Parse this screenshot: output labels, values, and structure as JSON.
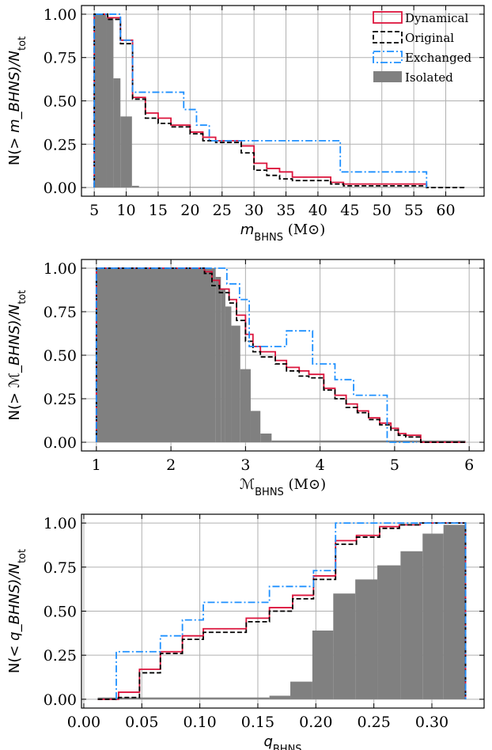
{
  "chart_data": [
    {
      "type": "line",
      "xlim": [
        3,
        66
      ],
      "ylim": [
        -0.05,
        1.05
      ],
      "xticks": [
        5,
        10,
        15,
        20,
        25,
        30,
        35,
        40,
        45,
        50,
        55,
        60
      ],
      "xtick_labels": [
        "5",
        "10",
        "15",
        "20",
        "25",
        "30",
        "35",
        "40",
        "45",
        "50",
        "55",
        "60"
      ],
      "yticks": [
        0,
        0.25,
        0.5,
        0.75,
        1.0
      ],
      "ytick_labels": [
        "0.00",
        "0.25",
        "0.50",
        "0.75",
        "1.00"
      ],
      "xlabel": "m_BHNS (M⊙)",
      "ylabel": "N(> m_BHNS)/N_tot",
      "grid": true,
      "legend": "top-right",
      "series": [
        {
          "name": "Dynamical",
          "kind": "step",
          "color": "#dc143c",
          "dash": "solid",
          "x": [
            5.0,
            5.0,
            7.1,
            7.1,
            9.1,
            9.1,
            11.0,
            11.0,
            13.0,
            13.0,
            15.0,
            15.0,
            17.0,
            17.0,
            20.0,
            20.0,
            22.0,
            22.0,
            24.0,
            24.0,
            28.0,
            28.0,
            30.0,
            30.0,
            32.0,
            32.0,
            34.0,
            34.0,
            36.0,
            36.0,
            42.0,
            42.0,
            44.0,
            44.0,
            57.0,
            57.0
          ],
          "y": [
            0.0,
            1.0,
            1.0,
            0.98,
            0.98,
            0.85,
            0.85,
            0.52,
            0.52,
            0.43,
            0.43,
            0.4,
            0.4,
            0.36,
            0.36,
            0.32,
            0.32,
            0.29,
            0.29,
            0.27,
            0.27,
            0.24,
            0.24,
            0.14,
            0.14,
            0.11,
            0.11,
            0.09,
            0.09,
            0.06,
            0.06,
            0.03,
            0.03,
            0.02,
            0.02,
            0.0
          ]
        },
        {
          "name": "Original",
          "kind": "step",
          "color": "#000000",
          "dash": "dashed",
          "x": [
            5.0,
            5.0,
            7.1,
            7.1,
            9.1,
            9.1,
            11.0,
            11.0,
            13.0,
            13.0,
            15.0,
            15.0,
            17.0,
            17.0,
            20.0,
            20.0,
            22.0,
            22.0,
            24.0,
            24.0,
            28.0,
            28.0,
            30.0,
            30.0,
            32.0,
            32.0,
            34.0,
            34.0,
            36.0,
            36.0,
            42.0,
            42.0,
            44.0,
            44.0,
            57.0,
            57.0,
            63.0
          ],
          "y": [
            0.0,
            1.0,
            1.0,
            0.97,
            0.97,
            0.83,
            0.83,
            0.51,
            0.51,
            0.4,
            0.4,
            0.37,
            0.37,
            0.35,
            0.35,
            0.31,
            0.31,
            0.27,
            0.27,
            0.26,
            0.26,
            0.2,
            0.2,
            0.1,
            0.1,
            0.07,
            0.07,
            0.05,
            0.05,
            0.04,
            0.04,
            0.02,
            0.02,
            0.01,
            0.01,
            0.0,
            0.0
          ]
        },
        {
          "name": "Exchanged",
          "kind": "step",
          "color": "#1e90ff",
          "dash": "dashdot",
          "x": [
            5.0,
            5.0,
            9.1,
            9.1,
            11.0,
            11.0,
            19.0,
            19.0,
            21.0,
            21.0,
            23.0,
            23.0,
            43.5,
            43.5,
            57.0,
            57.0
          ],
          "y": [
            0.0,
            1.0,
            1.0,
            0.85,
            0.85,
            0.55,
            0.55,
            0.45,
            0.45,
            0.36,
            0.36,
            0.27,
            0.27,
            0.09,
            0.09,
            0.0
          ]
        },
        {
          "name": "Isolated",
          "kind": "bars",
          "color": "#808080",
          "edges": [
            5.0,
            6.9,
            8.0,
            9.1,
            10.9,
            12.0,
            63.0
          ],
          "values": [
            1.0,
            0.98,
            0.63,
            0.41,
            0.01,
            0.003
          ]
        }
      ]
    },
    {
      "type": "line",
      "xlim": [
        0.8,
        6.2
      ],
      "ylim": [
        -0.05,
        1.05
      ],
      "xticks": [
        1,
        2,
        3,
        4,
        5,
        6
      ],
      "xtick_labels": [
        "1",
        "2",
        "3",
        "4",
        "5",
        "6"
      ],
      "yticks": [
        0,
        0.25,
        0.5,
        0.75,
        1.0
      ],
      "ytick_labels": [
        "0.00",
        "0.25",
        "0.50",
        "0.75",
        "1.00"
      ],
      "xlabel": "ℳ_BHNS (M⊙)",
      "ylabel": "N(> ℳ_BHNS)/N_tot",
      "grid": true,
      "series": [
        {
          "name": "Dynamical",
          "kind": "step",
          "color": "#dc143c",
          "dash": "solid",
          "x": [
            1.0,
            1.0,
            2.45,
            2.45,
            2.55,
            2.55,
            2.65,
            2.65,
            2.78,
            2.78,
            2.88,
            2.88,
            3.0,
            3.0,
            3.1,
            3.1,
            3.2,
            3.2,
            3.4,
            3.4,
            3.55,
            3.55,
            3.72,
            3.72,
            3.85,
            3.85,
            4.05,
            4.05,
            4.2,
            4.2,
            4.35,
            4.35,
            4.5,
            4.5,
            4.65,
            4.65,
            4.8,
            4.8,
            4.95,
            4.95,
            5.05,
            5.05,
            5.15,
            5.15,
            5.35,
            5.35,
            5.95
          ],
          "y": [
            0.0,
            1.0,
            1.0,
            0.98,
            0.98,
            0.93,
            0.93,
            0.88,
            0.88,
            0.82,
            0.82,
            0.73,
            0.73,
            0.62,
            0.62,
            0.55,
            0.55,
            0.52,
            0.52,
            0.47,
            0.47,
            0.43,
            0.43,
            0.41,
            0.41,
            0.39,
            0.39,
            0.31,
            0.31,
            0.27,
            0.27,
            0.22,
            0.22,
            0.18,
            0.18,
            0.14,
            0.14,
            0.11,
            0.11,
            0.08,
            0.08,
            0.05,
            0.05,
            0.04,
            0.04,
            0.0,
            0.0
          ]
        },
        {
          "name": "Original",
          "kind": "step",
          "color": "#000000",
          "dash": "dashed",
          "x": [
            1.0,
            1.0,
            2.45,
            2.45,
            2.55,
            2.55,
            2.65,
            2.65,
            2.78,
            2.78,
            2.88,
            2.88,
            3.0,
            3.0,
            3.1,
            3.1,
            3.2,
            3.2,
            3.4,
            3.4,
            3.55,
            3.55,
            3.72,
            3.72,
            3.85,
            3.85,
            4.05,
            4.05,
            4.2,
            4.2,
            4.35,
            4.35,
            4.5,
            4.5,
            4.65,
            4.65,
            4.8,
            4.8,
            4.95,
            4.95,
            5.05,
            5.05,
            5.15,
            5.15,
            5.35,
            5.35,
            5.95
          ],
          "y": [
            0.0,
            1.0,
            1.0,
            0.97,
            0.97,
            0.9,
            0.9,
            0.86,
            0.86,
            0.8,
            0.8,
            0.7,
            0.7,
            0.58,
            0.58,
            0.52,
            0.52,
            0.49,
            0.49,
            0.45,
            0.45,
            0.41,
            0.41,
            0.38,
            0.38,
            0.37,
            0.37,
            0.3,
            0.3,
            0.25,
            0.25,
            0.2,
            0.2,
            0.17,
            0.17,
            0.13,
            0.13,
            0.1,
            0.1,
            0.07,
            0.07,
            0.04,
            0.04,
            0.03,
            0.03,
            0.0,
            0.0
          ]
        },
        {
          "name": "Exchanged",
          "kind": "step",
          "color": "#1e90ff",
          "dash": "dashdot",
          "x": [
            1.0,
            1.0,
            2.75,
            2.75,
            2.92,
            2.92,
            3.05,
            3.05,
            3.55,
            3.55,
            3.9,
            3.9,
            4.2,
            4.2,
            4.45,
            4.45,
            4.9,
            4.9,
            5.3,
            5.3
          ],
          "y": [
            0.0,
            1.0,
            1.0,
            0.91,
            0.91,
            0.82,
            0.82,
            0.55,
            0.55,
            0.64,
            0.64,
            0.45,
            0.45,
            0.36,
            0.36,
            0.27,
            0.27,
            0.0,
            0.0,
            0.0
          ]
        },
        {
          "name": "Isolated",
          "kind": "bars",
          "color": "#808080",
          "edges": [
            1.0,
            2.6,
            2.67,
            2.73,
            2.81,
            2.93,
            3.07,
            3.2,
            3.35,
            5.95
          ],
          "values": [
            1.0,
            0.95,
            0.88,
            0.78,
            0.67,
            0.42,
            0.18,
            0.05,
            0.01
          ]
        }
      ]
    },
    {
      "type": "line",
      "xlim": [
        -0.002,
        0.345
      ],
      "ylim": [
        -0.05,
        1.05
      ],
      "xticks": [
        0.0,
        0.05,
        0.1,
        0.15,
        0.2,
        0.25,
        0.3
      ],
      "xtick_labels": [
        "0.00",
        "0.05",
        "0.10",
        "0.15",
        "0.20",
        "0.25",
        "0.30"
      ],
      "yticks": [
        0,
        0.25,
        0.5,
        0.75,
        1.0
      ],
      "ytick_labels": [
        "0.00",
        "0.25",
        "0.50",
        "0.75",
        "1.00"
      ],
      "xlabel": "q_BHNS",
      "ylabel": "N(< q_BHNS)/N_tot",
      "grid": true,
      "series": [
        {
          "name": "Dynamical",
          "kind": "step",
          "color": "#dc143c",
          "dash": "solid",
          "x": [
            0.012,
            0.03,
            0.03,
            0.048,
            0.048,
            0.066,
            0.066,
            0.085,
            0.085,
            0.103,
            0.103,
            0.14,
            0.14,
            0.16,
            0.16,
            0.18,
            0.18,
            0.198,
            0.198,
            0.217,
            0.217,
            0.235,
            0.235,
            0.255,
            0.255,
            0.272,
            0.272,
            0.29,
            0.29,
            0.329,
            0.329
          ],
          "y": [
            0.0,
            0.0,
            0.04,
            0.04,
            0.17,
            0.17,
            0.27,
            0.27,
            0.36,
            0.36,
            0.4,
            0.4,
            0.46,
            0.46,
            0.52,
            0.52,
            0.59,
            0.59,
            0.7,
            0.7,
            0.9,
            0.9,
            0.93,
            0.93,
            0.98,
            0.98,
            0.99,
            0.99,
            1.0,
            1.0,
            0.0
          ]
        },
        {
          "name": "Original",
          "kind": "step",
          "color": "#000000",
          "dash": "dashed",
          "x": [
            0.012,
            0.03,
            0.03,
            0.048,
            0.048,
            0.066,
            0.066,
            0.085,
            0.085,
            0.103,
            0.103,
            0.14,
            0.14,
            0.16,
            0.16,
            0.18,
            0.18,
            0.198,
            0.198,
            0.217,
            0.217,
            0.235,
            0.235,
            0.255,
            0.255,
            0.272,
            0.272,
            0.29,
            0.29,
            0.329,
            0.329
          ],
          "y": [
            0.0,
            0.0,
            0.01,
            0.01,
            0.15,
            0.15,
            0.26,
            0.26,
            0.34,
            0.34,
            0.38,
            0.38,
            0.44,
            0.44,
            0.5,
            0.5,
            0.57,
            0.57,
            0.68,
            0.68,
            0.88,
            0.88,
            0.92,
            0.92,
            0.97,
            0.97,
            0.99,
            0.99,
            1.0,
            1.0,
            0.0
          ]
        },
        {
          "name": "Exchanged",
          "kind": "step",
          "color": "#1e90ff",
          "dash": "dashdot",
          "x": [
            0.028,
            0.028,
            0.066,
            0.066,
            0.085,
            0.085,
            0.103,
            0.103,
            0.16,
            0.16,
            0.198,
            0.198,
            0.217,
            0.217,
            0.329,
            0.329
          ],
          "y": [
            0.0,
            0.27,
            0.27,
            0.36,
            0.36,
            0.45,
            0.45,
            0.55,
            0.55,
            0.64,
            0.64,
            0.73,
            0.73,
            1.0,
            1.0,
            0.0
          ]
        },
        {
          "name": "Isolated",
          "kind": "bars",
          "color": "#808080",
          "edges": [
            0.012,
            0.16,
            0.178,
            0.197,
            0.215,
            0.234,
            0.253,
            0.273,
            0.292,
            0.31,
            0.329
          ],
          "values": [
            0.01,
            0.02,
            0.1,
            0.39,
            0.6,
            0.68,
            0.76,
            0.84,
            0.94,
            0.99
          ]
        }
      ]
    }
  ]
}
